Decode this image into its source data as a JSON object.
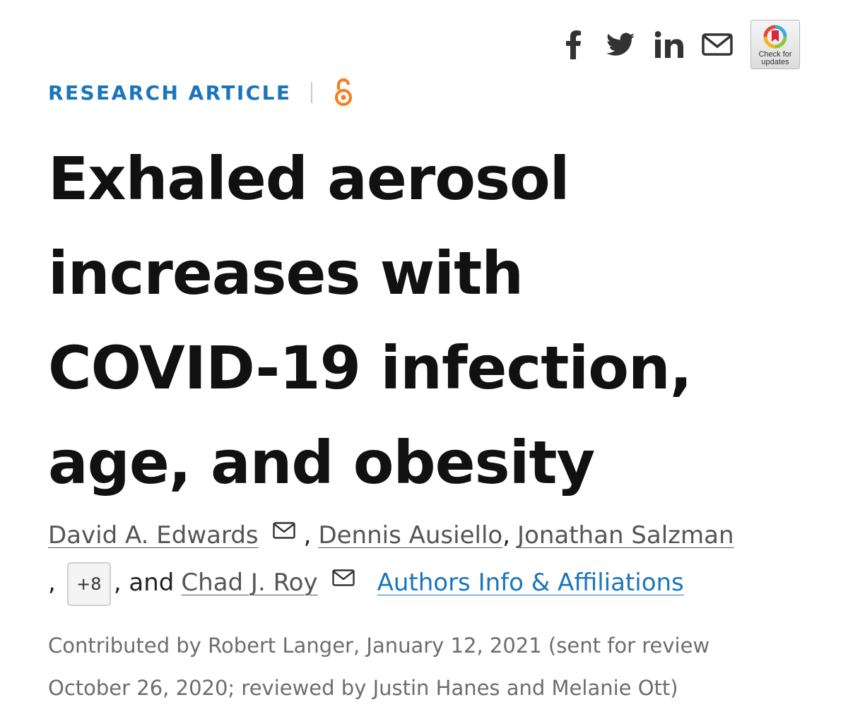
{
  "share": {
    "icons": [
      "facebook-icon",
      "twitter-icon",
      "linkedin-icon",
      "mail-icon"
    ],
    "crossmark": {
      "label_line1": "Check for",
      "label_line2": "updates"
    }
  },
  "article": {
    "type": "RESEARCH ARTICLE",
    "access": "open-access-icon",
    "title_lines": [
      "Exhaled aerosol",
      "increases with",
      "COVID-19 infection,",
      "age, and obesity"
    ]
  },
  "authors": {
    "list": [
      "David A. Edwards",
      "Dennis Ausiello",
      "Jonathan Salzman",
      "Chad J. Roy"
    ],
    "sep_comma": ",",
    "sep_and": ", and",
    "more_label": "+8",
    "affiliations_link": "Authors Info & Affiliations"
  },
  "contribution": {
    "line1": "Contributed by Robert Langer, January 12, 2021 (sent for review",
    "line2": "October 26, 2020; reviewed by Justin Hanes and Melanie Ott)"
  },
  "colors": {
    "accent": "#1b75bb",
    "open_access": "#f48120",
    "title": "#111111",
    "meta": "#6d6d6d"
  }
}
